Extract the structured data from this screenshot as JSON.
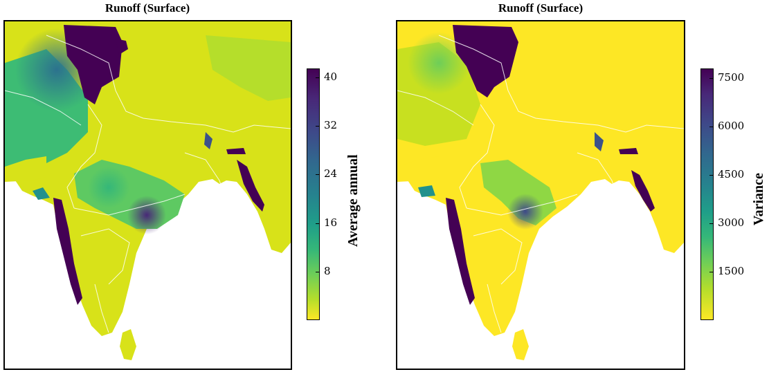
{
  "panels": [
    {
      "title": "Runoff (Surface)",
      "colorbar_label": "Average annual",
      "ticks": [
        "40",
        "32",
        "24",
        "16",
        "8"
      ],
      "tick_values": [
        40,
        32,
        24,
        16,
        8
      ],
      "range": [
        0,
        41.5
      ]
    },
    {
      "title": "Runoff (Surface)",
      "colorbar_label": "Variance",
      "ticks": [
        "7500",
        "6000",
        "4500",
        "3000",
        "1500"
      ],
      "tick_values": [
        7500,
        6000,
        4500,
        3000,
        1500
      ],
      "range": [
        0,
        7800
      ]
    }
  ],
  "colormap": "viridis-reversed",
  "colors": {
    "high": "#440154",
    "mid": "#21918c",
    "low": "#fde725",
    "boundary": "#ffffff",
    "ocean": "#ffffff"
  }
}
